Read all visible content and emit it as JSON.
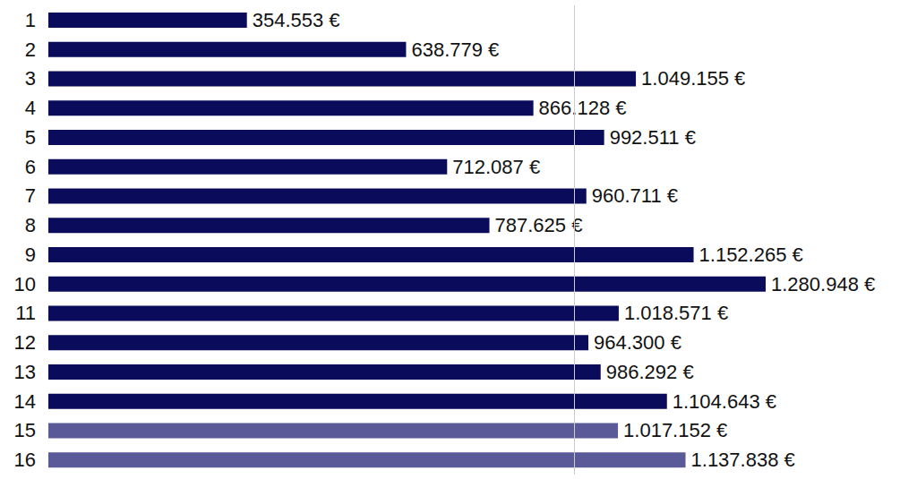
{
  "chart_data": {
    "type": "bar",
    "orientation": "horizontal",
    "categories": [
      "1",
      "2",
      "3",
      "4",
      "5",
      "6",
      "7",
      "8",
      "9",
      "10",
      "11",
      "12",
      "13",
      "14",
      "15",
      "16"
    ],
    "values": [
      354553,
      638779,
      1049155,
      866128,
      992511,
      712087,
      960711,
      787625,
      1152265,
      1280948,
      1018571,
      964300,
      986292,
      1104643,
      1017152,
      1137838
    ],
    "value_labels": [
      "354.553 €",
      "638.779 €",
      "1.049.155 €",
      "866.128 €",
      "992.511 €",
      "712.087 €",
      "960.711 €",
      "787.625 €",
      "1.152.265 €",
      "1.280.948 €",
      "1.018.571 €",
      "964.300 €",
      "986.292 €",
      "1.104.643 €",
      "1.017.152 €",
      "1.137.838 €"
    ],
    "colors": [
      "#0b0b5c",
      "#0b0b5c",
      "#0b0b5c",
      "#0b0b5c",
      "#0b0b5c",
      "#0b0b5c",
      "#0b0b5c",
      "#0b0b5c",
      "#0b0b5c",
      "#0b0b5c",
      "#0b0b5c",
      "#0b0b5c",
      "#0b0b5c",
      "#0b0b5c",
      "#5a5a98",
      "#5a5a98"
    ],
    "xlim": [
      0,
      1500000
    ],
    "data_labels": true,
    "tick_labels": "y",
    "grid": false
  }
}
